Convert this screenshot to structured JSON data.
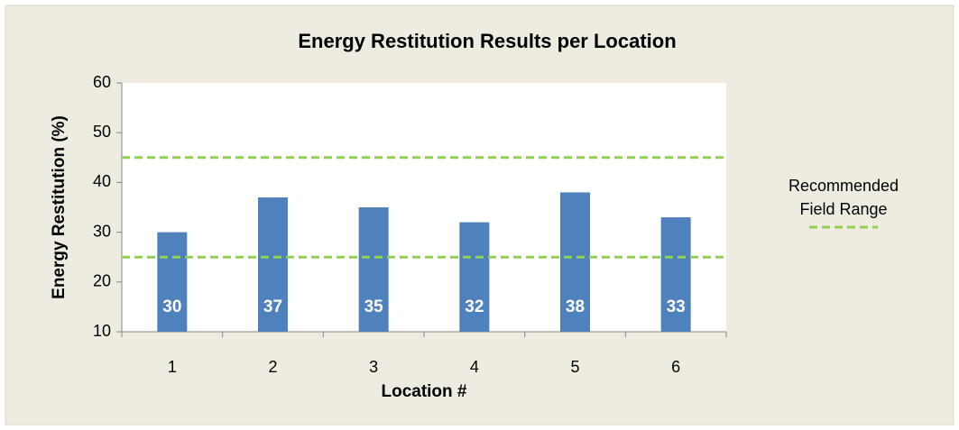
{
  "chart_data": {
    "type": "bar",
    "title": "Energy Restitution Results per Location",
    "x_label": "Location #",
    "y_label": "Energy Restitution (%)",
    "categories": [
      "1",
      "2",
      "3",
      "4",
      "5",
      "6"
    ],
    "values": [
      30,
      37,
      35,
      32,
      38,
      33
    ],
    "color": "#4f81bd",
    "ylim": [
      10,
      60
    ],
    "yticks": [
      10,
      20,
      30,
      40,
      50,
      60
    ],
    "reference_range": {
      "name": "Recommended Field Range",
      "color": "#92d050",
      "values": [
        45,
        25
      ]
    },
    "legend": "right"
  }
}
